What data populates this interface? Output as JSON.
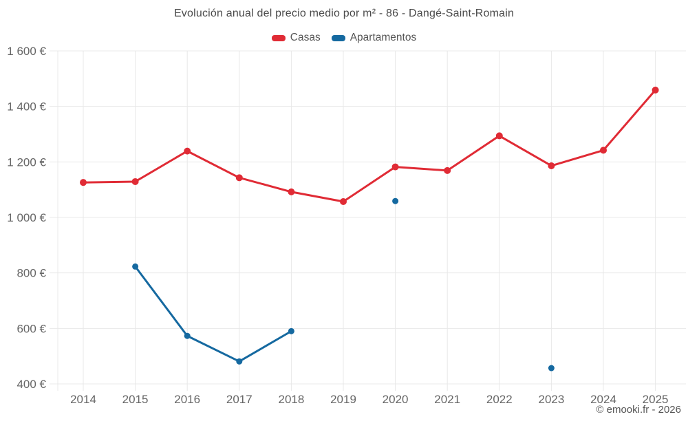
{
  "title": "Evolución anual del precio medio por m² - 86 - Dangé-Saint-Romain",
  "copyright": "© emooki.fr - 2026",
  "legend": [
    {
      "label": "Casas",
      "color": "#e02b35"
    },
    {
      "label": "Apartamentos",
      "color": "#1569a0"
    }
  ],
  "chart_data": {
    "type": "line",
    "title": "Evolución anual del precio medio por m² - 86 - Dangé-Saint-Romain",
    "categories": [
      "2014",
      "2015",
      "2016",
      "2017",
      "2018",
      "2019",
      "2020",
      "2021",
      "2022",
      "2023",
      "2024",
      "2025"
    ],
    "series": [
      {
        "name": "Casas",
        "color": "#e02b35",
        "values": [
          1126,
          1129,
          1239,
          1143,
          1092,
          1057,
          1182,
          1169,
          1294,
          1186,
          1242,
          1459
        ]
      },
      {
        "name": "Apartamentos",
        "color": "#1569a0",
        "values": [
          null,
          823,
          573,
          481,
          590,
          null,
          1059,
          null,
          null,
          457,
          null,
          null
        ]
      }
    ],
    "xlabel": "",
    "ylabel": "",
    "ylim": [
      400,
      1600
    ],
    "ytick_values": [
      400,
      600,
      800,
      1000,
      1200,
      1400,
      1600
    ],
    "ytick_labels": [
      "400 €",
      "600 €",
      "800 €",
      "1 000 €",
      "1 200 €",
      "1 400 €",
      "1 600 €"
    ],
    "grid": true,
    "grid_color": "#e8e8e8",
    "tick_text_color": "#666666",
    "legend_position": "top"
  }
}
